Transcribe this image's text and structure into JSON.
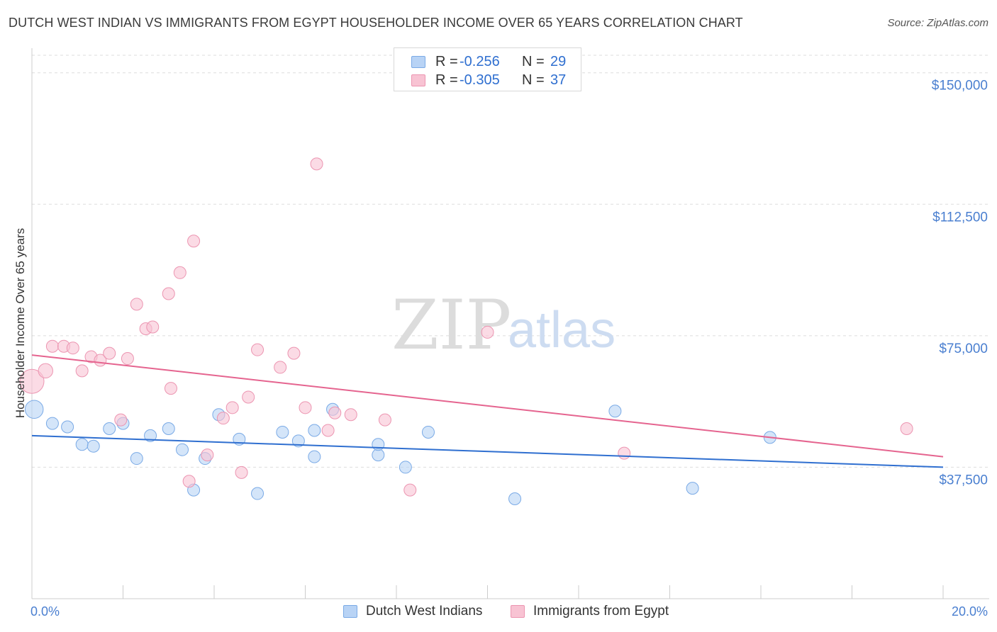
{
  "title": "DUTCH WEST INDIAN VS IMMIGRANTS FROM EGYPT HOUSEHOLDER INCOME OVER 65 YEARS CORRELATION CHART",
  "source": "Source: ZipAtlas.com",
  "watermark": {
    "zip": "ZIP",
    "atlas": "atlas"
  },
  "colors": {
    "blue_fill": "#b8d3f5",
    "blue_stroke": "#7aaae6",
    "blue_line": "#2f6fd0",
    "pink_fill": "#f8c3d3",
    "pink_stroke": "#ec95b1",
    "pink_line": "#e5648f",
    "accent_text": "#4a7fd0",
    "grid": "#dddddd"
  },
  "stats_legend": [
    {
      "r_label": "R =",
      "r_value": "-0.256",
      "n_label": "N =",
      "n_value": "29"
    },
    {
      "r_label": "R =",
      "r_value": "-0.305",
      "n_label": "N =",
      "n_value": "37"
    }
  ],
  "legend": [
    "Dutch West Indians",
    "Immigrants from Egypt"
  ],
  "chart_data": {
    "type": "scatter",
    "title": "DUTCH WEST INDIAN VS IMMIGRANTS FROM EGYPT HOUSEHOLDER INCOME OVER 65 YEARS CORRELATION CHART",
    "xlabel": "",
    "ylabel": "Householder Income Over 65 years",
    "xlim": [
      0,
      20
    ],
    "ylim": [
      0,
      155000
    ],
    "x_tick_labels": [
      {
        "value": 0,
        "label": "0.0%"
      },
      {
        "value": 20,
        "label": "20.0%"
      }
    ],
    "y_ticks": [
      {
        "value": 37500,
        "label": "$37,500"
      },
      {
        "value": 75000,
        "label": "$75,000"
      },
      {
        "value": 112500,
        "label": "$112,500"
      },
      {
        "value": 150000,
        "label": "$150,000"
      }
    ],
    "grid": "horizontal dashed",
    "legend_position": "bottom",
    "series": [
      {
        "name": "Dutch West Indians",
        "color": "blue",
        "trend": {
          "x": [
            0,
            20
          ],
          "y": [
            46500,
            37500
          ]
        },
        "points": [
          [
            0.05,
            54000,
            1.5
          ],
          [
            0.45,
            50000,
            1
          ],
          [
            0.78,
            49000,
            1
          ],
          [
            1.1,
            44000,
            1
          ],
          [
            1.35,
            43500,
            1
          ],
          [
            1.7,
            48500,
            1
          ],
          [
            2.0,
            50000,
            1
          ],
          [
            2.3,
            40000,
            1
          ],
          [
            2.6,
            46500,
            1
          ],
          [
            3.0,
            48500,
            1
          ],
          [
            3.3,
            42500,
            1
          ],
          [
            3.55,
            31000,
            1
          ],
          [
            3.8,
            40000,
            1
          ],
          [
            4.1,
            52500,
            1
          ],
          [
            4.55,
            45500,
            1
          ],
          [
            4.95,
            30000,
            1
          ],
          [
            5.5,
            47500,
            1
          ],
          [
            5.85,
            45000,
            1
          ],
          [
            6.2,
            48000,
            1
          ],
          [
            6.2,
            40500,
            1
          ],
          [
            6.6,
            54000,
            1
          ],
          [
            7.6,
            41000,
            1
          ],
          [
            7.6,
            44000,
            1
          ],
          [
            8.2,
            37500,
            1
          ],
          [
            8.7,
            47500,
            1
          ],
          [
            10.6,
            28500,
            1
          ],
          [
            12.8,
            53500,
            1
          ],
          [
            14.5,
            31500,
            1
          ],
          [
            16.2,
            46000,
            1
          ]
        ]
      },
      {
        "name": "Immigrants from Egypt",
        "color": "pink",
        "trend": {
          "x": [
            0,
            20
          ],
          "y": [
            69500,
            40500
          ]
        },
        "points": [
          [
            0.0,
            62000,
            2
          ],
          [
            0.3,
            65000,
            1.2
          ],
          [
            0.45,
            72000,
            1
          ],
          [
            0.7,
            72000,
            1
          ],
          [
            0.9,
            71500,
            1
          ],
          [
            1.1,
            65000,
            1
          ],
          [
            1.3,
            69000,
            1
          ],
          [
            1.5,
            68000,
            1
          ],
          [
            1.7,
            70000,
            1
          ],
          [
            1.95,
            51000,
            1
          ],
          [
            2.1,
            68500,
            1
          ],
          [
            2.3,
            84000,
            1
          ],
          [
            2.5,
            77000,
            1
          ],
          [
            2.65,
            77500,
            1
          ],
          [
            3.0,
            87000,
            1
          ],
          [
            3.05,
            60000,
            1
          ],
          [
            3.25,
            93000,
            1
          ],
          [
            3.45,
            33500,
            1
          ],
          [
            3.55,
            102000,
            1
          ],
          [
            3.85,
            41000,
            1
          ],
          [
            4.2,
            51500,
            1
          ],
          [
            4.4,
            54500,
            1
          ],
          [
            4.6,
            36000,
            1
          ],
          [
            4.75,
            57500,
            1
          ],
          [
            4.95,
            71000,
            1
          ],
          [
            5.45,
            66000,
            1
          ],
          [
            5.75,
            70000,
            1
          ],
          [
            6.0,
            54500,
            1
          ],
          [
            6.25,
            124000,
            1
          ],
          [
            6.5,
            48000,
            1
          ],
          [
            6.65,
            53000,
            1
          ],
          [
            7.0,
            52500,
            1
          ],
          [
            7.75,
            51000,
            1
          ],
          [
            8.3,
            31000,
            1
          ],
          [
            10.0,
            76000,
            1
          ],
          [
            13.0,
            41500,
            1
          ],
          [
            19.2,
            48500,
            1
          ]
        ]
      }
    ]
  }
}
